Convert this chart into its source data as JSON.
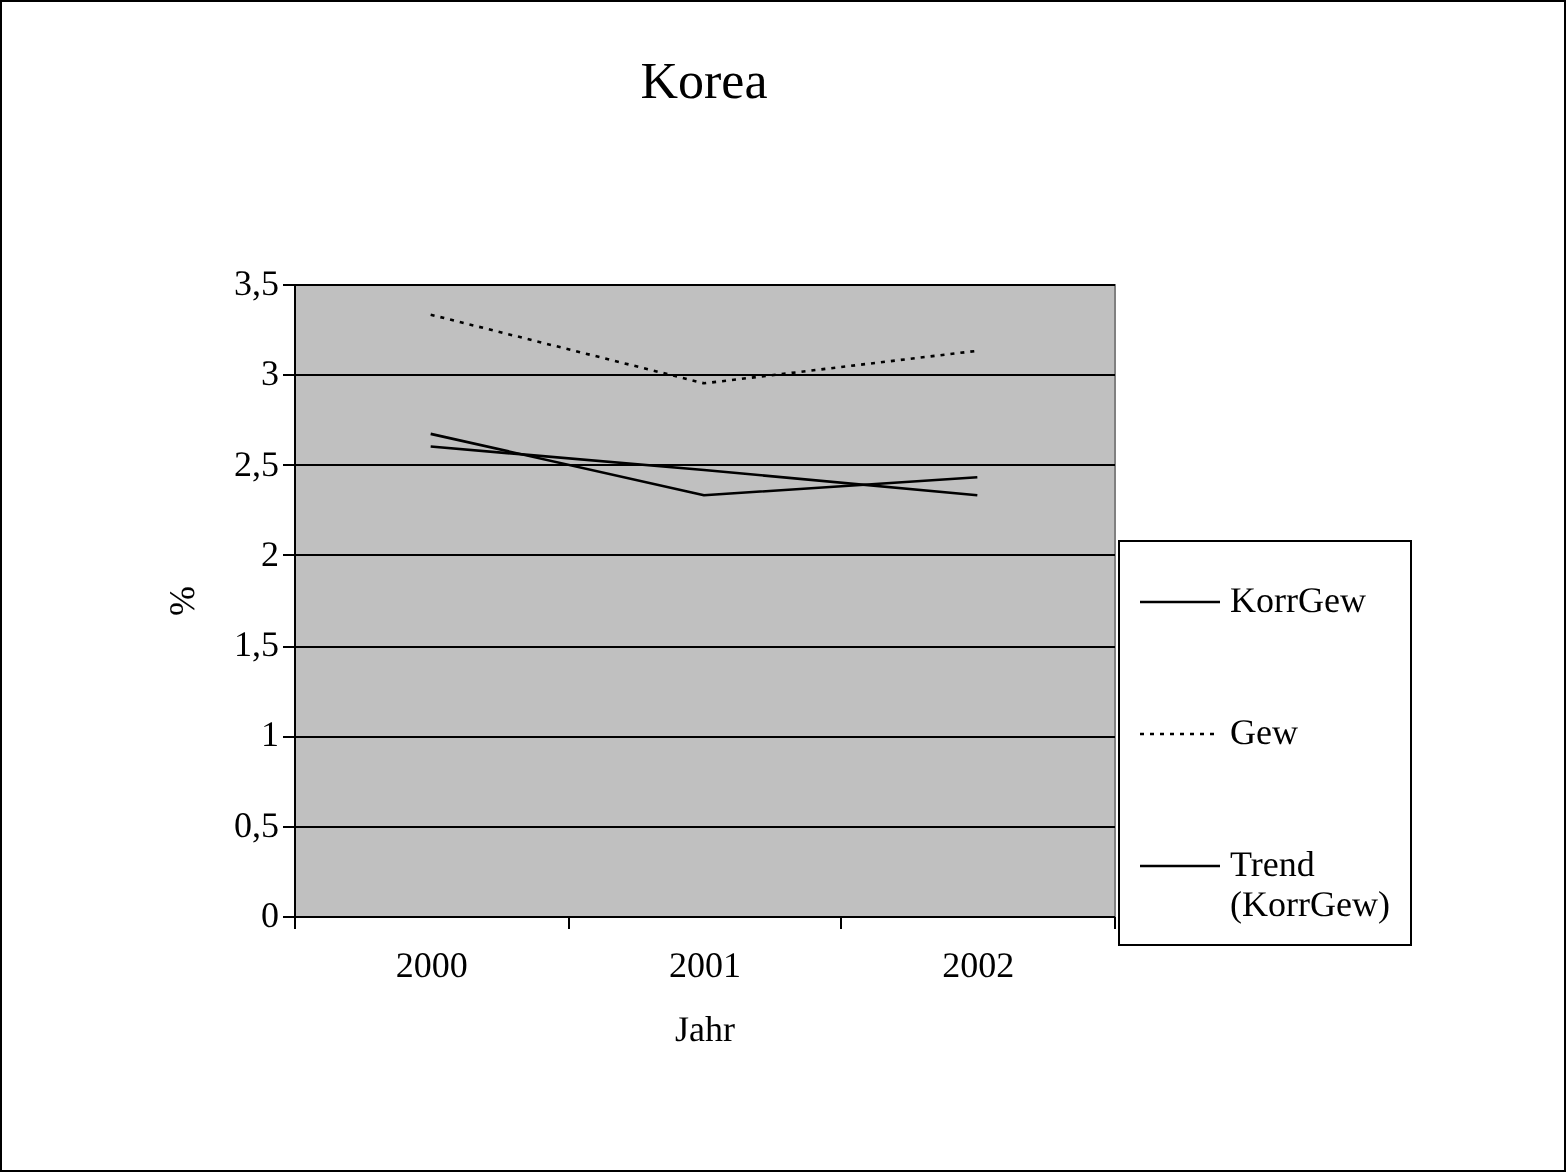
{
  "chart_data": {
    "type": "line",
    "title": "Korea",
    "xlabel": "Jahr",
    "ylabel": "%",
    "categories": [
      "2000",
      "2001",
      "2002"
    ],
    "series": [
      {
        "name": "KorrGew",
        "color": "#000000",
        "line_style": "solid",
        "values": [
          2.67,
          2.33,
          2.43
        ]
      },
      {
        "name": "Gew",
        "color": "#000000",
        "line_style": "dotted",
        "values": [
          3.33,
          2.95,
          3.13
        ]
      },
      {
        "name": "Trend (KorrGew)",
        "color": "#000000",
        "line_style": "solid",
        "values": [
          2.6,
          2.47,
          2.33
        ]
      }
    ],
    "ylim": [
      0,
      3.5
    ],
    "yticks": [
      0,
      {
        "value": 0.5,
        "label": "0,5"
      },
      1,
      {
        "value": 1.5,
        "label": "1,5"
      },
      2,
      {
        "value": 2.5,
        "label": "2,5"
      },
      3,
      {
        "value": 3.5,
        "label": "3,5"
      }
    ],
    "grid": "y",
    "legend": "right",
    "marker": "none"
  }
}
